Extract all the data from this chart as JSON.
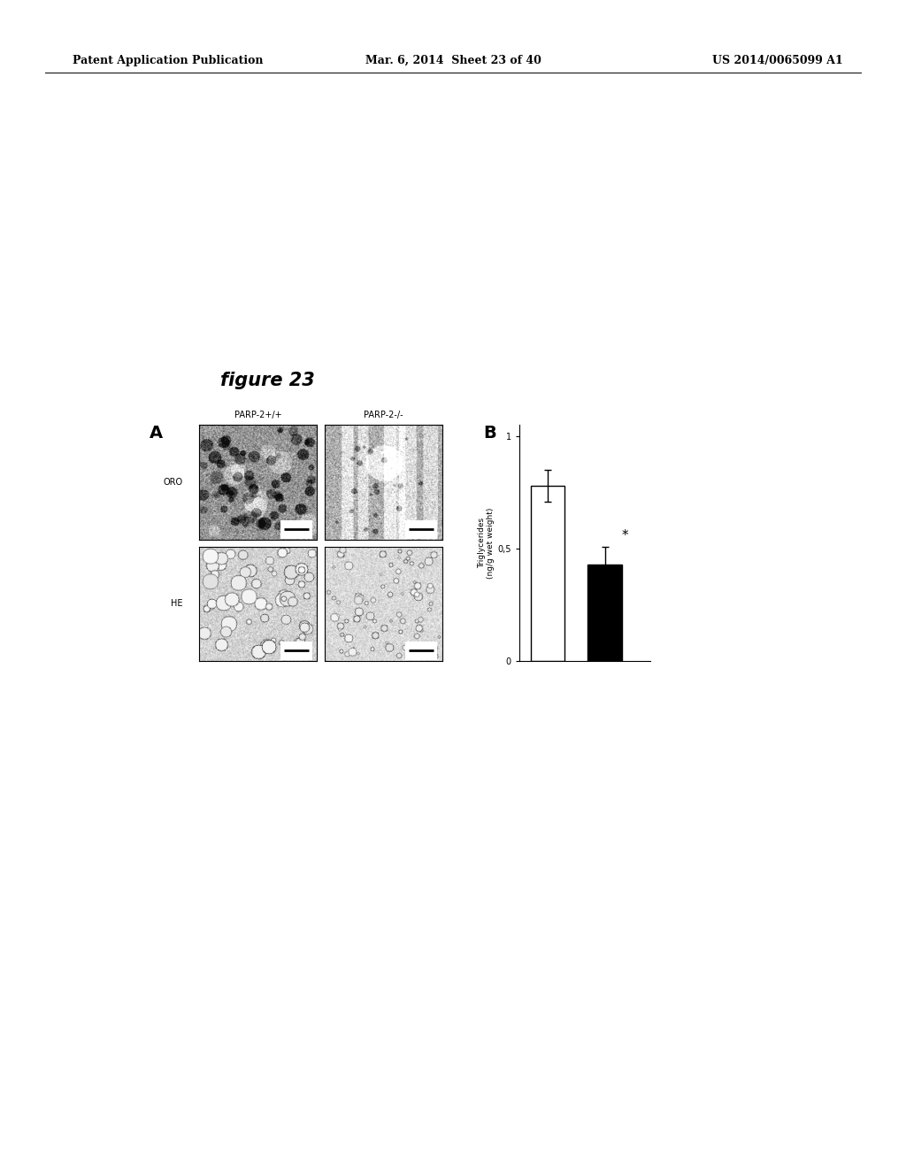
{
  "header_left": "Patent Application Publication",
  "header_mid": "Mar. 6, 2014  Sheet 23 of 40",
  "header_right": "US 2014/0065099 A1",
  "figure_title": "figure 23",
  "panel_a_label": "A",
  "panel_b_label": "B",
  "col_labels": [
    "PARP-2+/+",
    "PARP-2-/-"
  ],
  "row_labels": [
    "ORO",
    "HE"
  ],
  "bar_values": [
    0.78,
    0.43
  ],
  "bar_errors": [
    0.07,
    0.08
  ],
  "bar_colors": [
    "white",
    "black"
  ],
  "bar_edge_colors": [
    "black",
    "black"
  ],
  "ylabel_line1": "Triglycerides",
  "ylabel_line2": "(ng/g wet weight)",
  "ylim": [
    0,
    1.05
  ],
  "yticks": [
    0,
    0.5,
    1
  ],
  "ytick_labels": [
    "0",
    "0,5",
    "1"
  ],
  "significance_label": "*",
  "background_color": "white",
  "header_fontsize": 9,
  "figure_title_fontsize": 15,
  "panel_label_fontsize": 14,
  "col_label_fontsize": 7,
  "row_label_fontsize": 7
}
